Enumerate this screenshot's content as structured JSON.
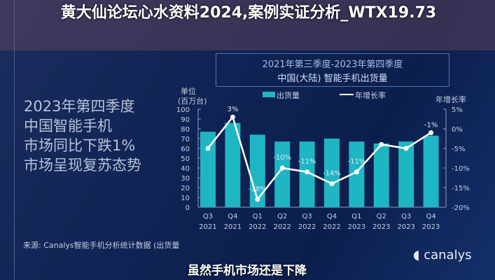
{
  "chart_data": {
    "type": "bar+line",
    "title": "2021年第三季度-2023年第四季度",
    "subtitle": "中国(大陆) 智能手机出货量",
    "ylabel": "单位\n(百万台)",
    "ylabel_line1": "单位",
    "ylabel_line2": "(百万台)",
    "y2label": "年增长率",
    "ylim": [
      0,
      100
    ],
    "y2lim": [
      -20,
      5
    ],
    "yticks": [
      "0",
      "10",
      "20",
      "30",
      "40",
      "50",
      "60",
      "70",
      "80",
      "90",
      "100"
    ],
    "y2ticks": [
      "-20%",
      "-15%",
      "-10%",
      "-5%",
      "0%",
      "5%"
    ],
    "categories": [
      "Q3\n2021",
      "Q4\n2021",
      "Q1\n2022",
      "Q2\n2022",
      "Q3\n2022",
      "Q4\n2022",
      "Q1\n2023",
      "Q2\n2023",
      "Q3\n2023",
      "Q4\n2023"
    ],
    "quarters": [
      "Q3",
      "Q4",
      "Q1",
      "Q2",
      "Q3",
      "Q4",
      "Q1",
      "Q2",
      "Q3",
      "Q4"
    ],
    "years": [
      "2021",
      "2021",
      "2022",
      "2022",
      "2022",
      "2022",
      "2023",
      "2023",
      "2023",
      "2023"
    ],
    "series": [
      {
        "name": "出货量",
        "type": "bar",
        "color": "#1fb6c4",
        "values": [
          77,
          86,
          74,
          67,
          67,
          70,
          67,
          65,
          67,
          73
        ]
      },
      {
        "name": "年增长率",
        "type": "line",
        "color": "#ffffff",
        "values": [
          -5,
          3,
          -18,
          -10,
          -11,
          -14,
          -11,
          -4,
          -5,
          -1
        ],
        "labels": [
          "",
          "3%",
          "-18%",
          "-10%",
          "-11%",
          "-14%",
          "-11%",
          "",
          "",
          "-1%"
        ]
      }
    ],
    "legend": "top",
    "grid": false
  },
  "side_text": [
    "2023年第四季度",
    "中国智能手机",
    "市场同比下跌1%",
    "市场呈现复苏态势"
  ],
  "headline": "黄大仙论坛心水资料2024,案例实证分析_WTX19.73",
  "source": "来源: Canalys智能手机分析统计数据 (出货量",
  "caption": "虽然手机市场还是下降",
  "logo": "canalys"
}
